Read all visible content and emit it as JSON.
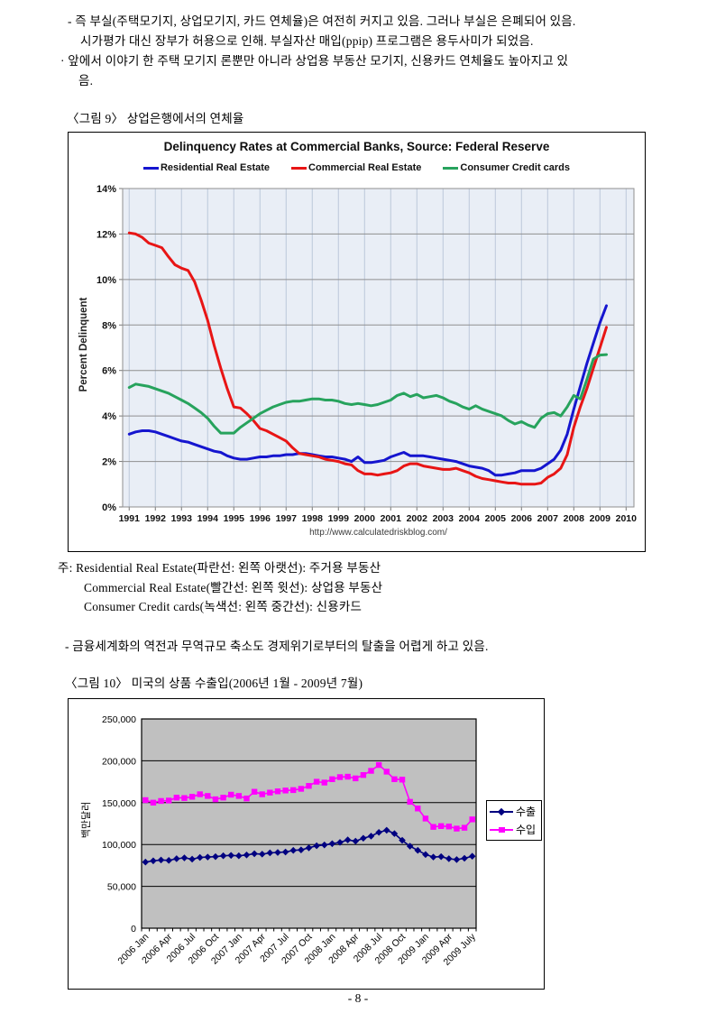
{
  "page": {
    "footer": "- 8 -"
  },
  "intro": {
    "lines": [
      "- 즉 부실(주택모기지, 상업모기지, 카드 연체율)은 여전히 커지고 있음. 그러나 부실은 은폐되어 있음.",
      "시가평가 대신 장부가 허용으로 인해. 부실자산 매입(ppip) 프로그램은 용두사미가 되었음.",
      "· 앞에서 이야기 한 주택 모기지 론뿐만 아니라 상업용 부동산 모기지, 신용카드 연체율도 높아지고 있",
      "음."
    ]
  },
  "figure9": {
    "caption": "〈그림 9〉 상업은행에서의 연체율",
    "notes": [
      "주: Residential Real Estate(파란선: 왼쪽 아랫선): 주거용 부동산",
      "Commercial Real Estate(빨간선: 왼쪽 윗선): 상업용 부동산",
      "Consumer Credit cards(녹색선: 왼쪽 중간선): 신용카드"
    ]
  },
  "sections": {
    "globalization": "- 금융세계화의 역전과 무역규모 축소도 경제위기로부터의 탈출을 어렵게 하고 있음."
  },
  "figure10": {
    "caption": "〈그림 10〉 미국의 상품 수출입(2006년 1월 - 2009년 7월)"
  },
  "chart_data": [
    {
      "type": "line",
      "title": "Delinquency Rates at Commercial Banks, Source: Federal Reserve",
      "source_url": "http://www.calculatedriskblog.com/",
      "ylabel": "Percent Delinquent",
      "ylim": [
        0,
        14
      ],
      "ytick_step": 2,
      "ytick_suffix": "%",
      "xlim": [
        1990.75,
        2010.3
      ],
      "xticks": [
        1991,
        1992,
        1993,
        1994,
        1995,
        1996,
        1997,
        1998,
        1999,
        2000,
        2001,
        2002,
        2003,
        2004,
        2005,
        2006,
        2007,
        2008,
        2009,
        2010
      ],
      "x_start": 1991,
      "x_step": 0.25,
      "plot_bg": "#e9eef6",
      "grid_h_color": "#8f8f8f",
      "grid_v_color": "#bcc8da",
      "legend_position": "top",
      "series": [
        {
          "name": "Residential Real Estate",
          "color": "#1515cf",
          "values": [
            3.2,
            3.3,
            3.35,
            3.35,
            3.3,
            3.2,
            3.1,
            3.0,
            2.9,
            2.85,
            2.75,
            2.65,
            2.55,
            2.45,
            2.4,
            2.25,
            2.15,
            2.1,
            2.1,
            2.15,
            2.2,
            2.2,
            2.25,
            2.25,
            2.3,
            2.3,
            2.35,
            2.35,
            2.3,
            2.25,
            2.2,
            2.2,
            2.15,
            2.1,
            2.0,
            2.2,
            1.95,
            1.95,
            2.0,
            2.05,
            2.2,
            2.3,
            2.4,
            2.25,
            2.25,
            2.25,
            2.2,
            2.15,
            2.1,
            2.05,
            2.0,
            1.9,
            1.8,
            1.75,
            1.7,
            1.6,
            1.4,
            1.4,
            1.45,
            1.5,
            1.6,
            1.6,
            1.6,
            1.7,
            1.9,
            2.1,
            2.5,
            3.2,
            4.3,
            5.3,
            6.3,
            7.2,
            8.1,
            8.85
          ]
        },
        {
          "name": "Commercial Real Estate",
          "color": "#e81515",
          "values": [
            12.05,
            12.0,
            11.85,
            11.6,
            11.5,
            11.4,
            11.0,
            10.65,
            10.5,
            10.4,
            9.9,
            9.1,
            8.2,
            7.1,
            6.1,
            5.2,
            4.4,
            4.35,
            4.1,
            3.8,
            3.45,
            3.35,
            3.2,
            3.05,
            2.9,
            2.6,
            2.35,
            2.3,
            2.25,
            2.2,
            2.1,
            2.05,
            2.0,
            1.9,
            1.85,
            1.6,
            1.45,
            1.45,
            1.4,
            1.45,
            1.5,
            1.6,
            1.8,
            1.9,
            1.9,
            1.8,
            1.75,
            1.7,
            1.65,
            1.65,
            1.7,
            1.6,
            1.5,
            1.35,
            1.25,
            1.2,
            1.15,
            1.1,
            1.05,
            1.05,
            1.0,
            1.0,
            1.0,
            1.05,
            1.3,
            1.45,
            1.7,
            2.3,
            3.5,
            4.4,
            5.2,
            6.1,
            7.0,
            7.9
          ]
        },
        {
          "name": "Consumer Credit cards",
          "color": "#27a35d",
          "values": [
            5.25,
            5.4,
            5.35,
            5.3,
            5.2,
            5.1,
            5.0,
            4.85,
            4.7,
            4.55,
            4.35,
            4.15,
            3.9,
            3.55,
            3.25,
            3.25,
            3.25,
            3.5,
            3.7,
            3.9,
            4.1,
            4.25,
            4.4,
            4.5,
            4.6,
            4.65,
            4.65,
            4.7,
            4.75,
            4.75,
            4.7,
            4.7,
            4.65,
            4.55,
            4.5,
            4.55,
            4.5,
            4.45,
            4.5,
            4.6,
            4.7,
            4.9,
            5.0,
            4.85,
            4.95,
            4.8,
            4.85,
            4.9,
            4.8,
            4.65,
            4.55,
            4.4,
            4.3,
            4.45,
            4.3,
            4.2,
            4.1,
            4.0,
            3.8,
            3.65,
            3.75,
            3.6,
            3.5,
            3.9,
            4.1,
            4.15,
            4.0,
            4.4,
            4.9,
            4.75,
            5.6,
            6.5,
            6.68,
            6.7
          ]
        }
      ]
    },
    {
      "type": "line",
      "title": "",
      "ylabel": "백만달러",
      "ylim": [
        0,
        250000
      ],
      "ytick_step": 50000,
      "ytick_labels": [
        "0",
        "50,000",
        "100,000",
        "150,000",
        "200,000",
        "250,000"
      ],
      "xticks": [
        "2006 Jan",
        "2006 Apr",
        "2006 Jul",
        "2006 Oct",
        "2007 Jan",
        "2007 Apr",
        "2007 Jul",
        "2007 Oct",
        "2008 Jan",
        "2008 Apr",
        "2008 Jul",
        "2008 Oct",
        "2009 Jan",
        "2009 Apr",
        "2009 July"
      ],
      "xtick_every": 3,
      "plot_bg": "#c0c0c0",
      "grid_h_color": "#000000",
      "legend_position": "right",
      "series": [
        {
          "name": "수출",
          "color": "#000080",
          "marker": "diamond",
          "values": [
            79000,
            80500,
            81500,
            81000,
            83000,
            84000,
            82500,
            84500,
            85000,
            85500,
            86500,
            87000,
            86500,
            87500,
            89000,
            88500,
            90000,
            90500,
            91000,
            93000,
            93500,
            96000,
            98500,
            99500,
            101000,
            102500,
            105500,
            104000,
            107500,
            110000,
            114500,
            117000,
            113000,
            105000,
            98000,
            93000,
            88000,
            85000,
            85500,
            83000,
            82000,
            83500,
            86000
          ]
        },
        {
          "name": "수입",
          "color": "#ff00ff",
          "marker": "square",
          "values": [
            153000,
            150000,
            152000,
            152500,
            156000,
            155500,
            157000,
            160000,
            158000,
            154000,
            156000,
            159500,
            158000,
            155000,
            163000,
            160000,
            162000,
            163500,
            164500,
            165000,
            166500,
            170000,
            175000,
            174000,
            178000,
            180500,
            181000,
            179000,
            183000,
            188000,
            195000,
            187000,
            178000,
            177500,
            151000,
            143000,
            131000,
            121000,
            122000,
            121500,
            119000,
            120000,
            130000
          ]
        }
      ]
    }
  ]
}
